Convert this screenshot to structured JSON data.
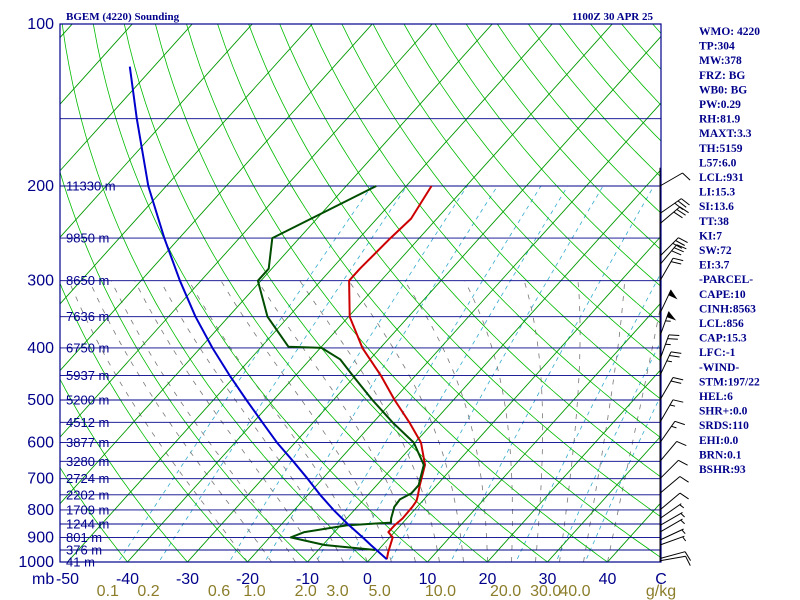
{
  "header": {
    "station": "BGEM (4220) Sounding",
    "time": "1100Z 30 APR 25"
  },
  "indices": [
    "WMO: 4220",
    "TP:304",
    "MW:378",
    "FRZ: BG",
    "WB0: BG",
    "PW:0.29",
    "RH:81.9",
    "MAXT:3.3",
    "TH:5159",
    "L57:6.0",
    "LCL:931",
    "LI:15.3",
    "SI:13.6",
    "TT:38",
    "KI:7",
    "SW:72",
    "EI:3.7",
    "-PARCEL-",
    "CAPE:10",
    "CINH:8563",
    "LCL:856",
    "CAP:15.3",
    "LFC:-1",
    "-WIND-",
    "STM:197/22",
    "HEL:6",
    "SHR+:0.0",
    "SRDS:110",
    "EHI:0.0",
    "BRN:0.1",
    "BSHR:93"
  ],
  "colors": {
    "frame": "#00008b",
    "isobar": "#00008b",
    "isotherm": "#009900",
    "dry_adiabat": "#00bb00",
    "moist_adiabat": "#777777",
    "mixing_ratio": "#33aacc",
    "temperature": "#cc0000",
    "dewpoint": "#004d00",
    "parcel": "#0000cc"
  },
  "chart_data": {
    "type": "line",
    "chart_kind": "Skew-T log-P sounding",
    "x_axis_label": "mb",
    "x_ticks": [
      "-50",
      "-40",
      "-30",
      "-20",
      "-10",
      "0",
      "10",
      "20",
      "30",
      "40",
      "C"
    ],
    "x_tick_values": [
      -50,
      -40,
      -30,
      -20,
      -10,
      0,
      10,
      20,
      30,
      40
    ],
    "pressure_tick_labels": [
      "100",
      "200",
      "300",
      "400",
      "500",
      "600",
      "700",
      "800",
      "900",
      "1000"
    ],
    "pressure_ticks": [
      100,
      200,
      300,
      400,
      500,
      600,
      700,
      800,
      900,
      1000
    ],
    "pressure_range_hpa": [
      100,
      1000
    ],
    "isobar_levels_hpa": [
      150,
      200,
      250,
      300,
      350,
      400,
      450,
      500,
      550,
      600,
      650,
      700,
      750,
      800,
      850,
      900,
      950,
      1000
    ],
    "height_labels": [
      {
        "p": 200,
        "label": "11330 m"
      },
      {
        "p": 250,
        "label": "9850 m"
      },
      {
        "p": 300,
        "label": "8650 m"
      },
      {
        "p": 350,
        "label": "7636 m"
      },
      {
        "p": 400,
        "label": "6750 m"
      },
      {
        "p": 450,
        "label": "5937 m"
      },
      {
        "p": 500,
        "label": "5200 m"
      },
      {
        "p": 550,
        "label": "4512 m"
      },
      {
        "p": 600,
        "label": "3877 m"
      },
      {
        "p": 650,
        "label": "3280 m"
      },
      {
        "p": 700,
        "label": "2724 m"
      },
      {
        "p": 750,
        "label": "2202 m"
      },
      {
        "p": 800,
        "label": "1709 m"
      },
      {
        "p": 850,
        "label": "1244 m"
      },
      {
        "p": 900,
        "label": "801 m"
      },
      {
        "p": 950,
        "label": "376 m"
      },
      {
        "p": 1000,
        "label": "41 m"
      }
    ],
    "mixing_ratio_labels_gkg": [
      "0.1",
      "0.2",
      "0.6",
      "1.0",
      "2.0",
      "3.0",
      "5.0",
      "10.0",
      "20.0",
      "30.0",
      "40.0"
    ],
    "mixing_ratio_values_gkg": [
      0.1,
      0.2,
      0.6,
      1.0,
      2.0,
      3.0,
      5.0,
      10.0,
      20.0,
      30.0,
      40.0
    ],
    "mixing_ratio_unit": "g/kg",
    "series": [
      {
        "key": "temperature",
        "points": [
          {
            "p": 988,
            "t": 2.8
          },
          {
            "p": 960,
            "t": 2.0
          },
          {
            "p": 900,
            "t": 0.5
          },
          {
            "p": 880,
            "t": -1.0
          },
          {
            "p": 855,
            "t": -1.0
          },
          {
            "p": 830,
            "t": -0.7
          },
          {
            "p": 790,
            "t": -0.8
          },
          {
            "p": 770,
            "t": -1.0
          },
          {
            "p": 755,
            "t": -1.5
          },
          {
            "p": 720,
            "t": -2.8
          },
          {
            "p": 660,
            "t": -5.0
          },
          {
            "p": 600,
            "t": -9.0
          },
          {
            "p": 550,
            "t": -14.0
          },
          {
            "p": 500,
            "t": -19.8
          },
          {
            "p": 450,
            "t": -25.8
          },
          {
            "p": 400,
            "t": -33.0
          },
          {
            "p": 350,
            "t": -39.8
          },
          {
            "p": 300,
            "t": -45.3
          },
          {
            "p": 285,
            "t": -45.3
          },
          {
            "p": 250,
            "t": -44.8
          },
          {
            "p": 230,
            "t": -44.3
          },
          {
            "p": 200,
            "t": -45.8
          }
        ]
      },
      {
        "key": "dewpoint",
        "points": [
          {
            "p": 950,
            "t": -0.5
          },
          {
            "p": 930,
            "t": -9.7
          },
          {
            "p": 900,
            "t": -16.5
          },
          {
            "p": 880,
            "t": -15.0
          },
          {
            "p": 855,
            "t": -9.0
          },
          {
            "p": 845,
            "t": -2.0
          },
          {
            "p": 830,
            "t": -2.6
          },
          {
            "p": 790,
            "t": -3.8
          },
          {
            "p": 765,
            "t": -4.0
          },
          {
            "p": 745,
            "t": -3.0
          },
          {
            "p": 720,
            "t": -3.0
          },
          {
            "p": 660,
            "t": -5.2
          },
          {
            "p": 600,
            "t": -10.2
          },
          {
            "p": 550,
            "t": -16.8
          },
          {
            "p": 500,
            "t": -23.5
          },
          {
            "p": 450,
            "t": -30.5
          },
          {
            "p": 420,
            "t": -35.0
          },
          {
            "p": 400,
            "t": -39.8
          },
          {
            "p": 398,
            "t": -45.5
          },
          {
            "p": 350,
            "t": -53.5
          },
          {
            "p": 300,
            "t": -60.5
          },
          {
            "p": 285,
            "t": -60.5
          },
          {
            "p": 250,
            "t": -64.5
          },
          {
            "p": 200,
            "t": -55.0
          }
        ]
      },
      {
        "key": "parcel",
        "points": [
          {
            "p": 988,
            "t": 2.8
          },
          {
            "p": 930,
            "t": -2.0
          },
          {
            "p": 900,
            "t": -4.5
          },
          {
            "p": 850,
            "t": -9.0
          },
          {
            "p": 800,
            "t": -13.5
          },
          {
            "p": 750,
            "t": -18.0
          },
          {
            "p": 700,
            "t": -22.5
          },
          {
            "p": 650,
            "t": -27.5
          },
          {
            "p": 600,
            "t": -33.0
          },
          {
            "p": 550,
            "t": -38.5
          },
          {
            "p": 500,
            "t": -44.5
          },
          {
            "p": 450,
            "t": -51.0
          },
          {
            "p": 400,
            "t": -58.0
          },
          {
            "p": 350,
            "t": -65.5
          },
          {
            "p": 300,
            "t": -73.5
          },
          {
            "p": 250,
            "t": -82.5
          },
          {
            "p": 200,
            "t": -93.0
          },
          {
            "p": 150,
            "t": -105.0
          },
          {
            "p": 120,
            "t": -114.0
          }
        ]
      }
    ],
    "wind_barbs": [
      {
        "p": 995,
        "dir": 260,
        "kt": 10
      },
      {
        "p": 985,
        "dir": 255,
        "kt": 10
      },
      {
        "p": 930,
        "dir": 250,
        "kt": 5
      },
      {
        "p": 910,
        "dir": 245,
        "kt": 5
      },
      {
        "p": 880,
        "dir": 240,
        "kt": 5
      },
      {
        "p": 855,
        "dir": 240,
        "kt": 5
      },
      {
        "p": 830,
        "dir": 235,
        "kt": 5
      },
      {
        "p": 800,
        "dir": 230,
        "kt": 10
      },
      {
        "p": 745,
        "dir": 230,
        "kt": 10
      },
      {
        "p": 700,
        "dir": 225,
        "kt": 10
      },
      {
        "p": 650,
        "dir": 220,
        "kt": 10
      },
      {
        "p": 600,
        "dir": 215,
        "kt": 15
      },
      {
        "p": 550,
        "dir": 210,
        "kt": 15
      },
      {
        "p": 500,
        "dir": 210,
        "kt": 20
      },
      {
        "p": 450,
        "dir": 205,
        "kt": 25
      },
      {
        "p": 420,
        "dir": 200,
        "kt": 25
      },
      {
        "p": 380,
        "dir": 200,
        "kt": 55
      },
      {
        "p": 345,
        "dir": 205,
        "kt": 50
      },
      {
        "p": 300,
        "dir": 210,
        "kt": 20
      },
      {
        "p": 280,
        "dir": 220,
        "kt": 30
      },
      {
        "p": 270,
        "dir": 225,
        "kt": 30
      },
      {
        "p": 235,
        "dir": 230,
        "kt": 30
      },
      {
        "p": 225,
        "dir": 235,
        "kt": 30
      },
      {
        "p": 200,
        "dir": 240,
        "kt": 10
      }
    ]
  }
}
